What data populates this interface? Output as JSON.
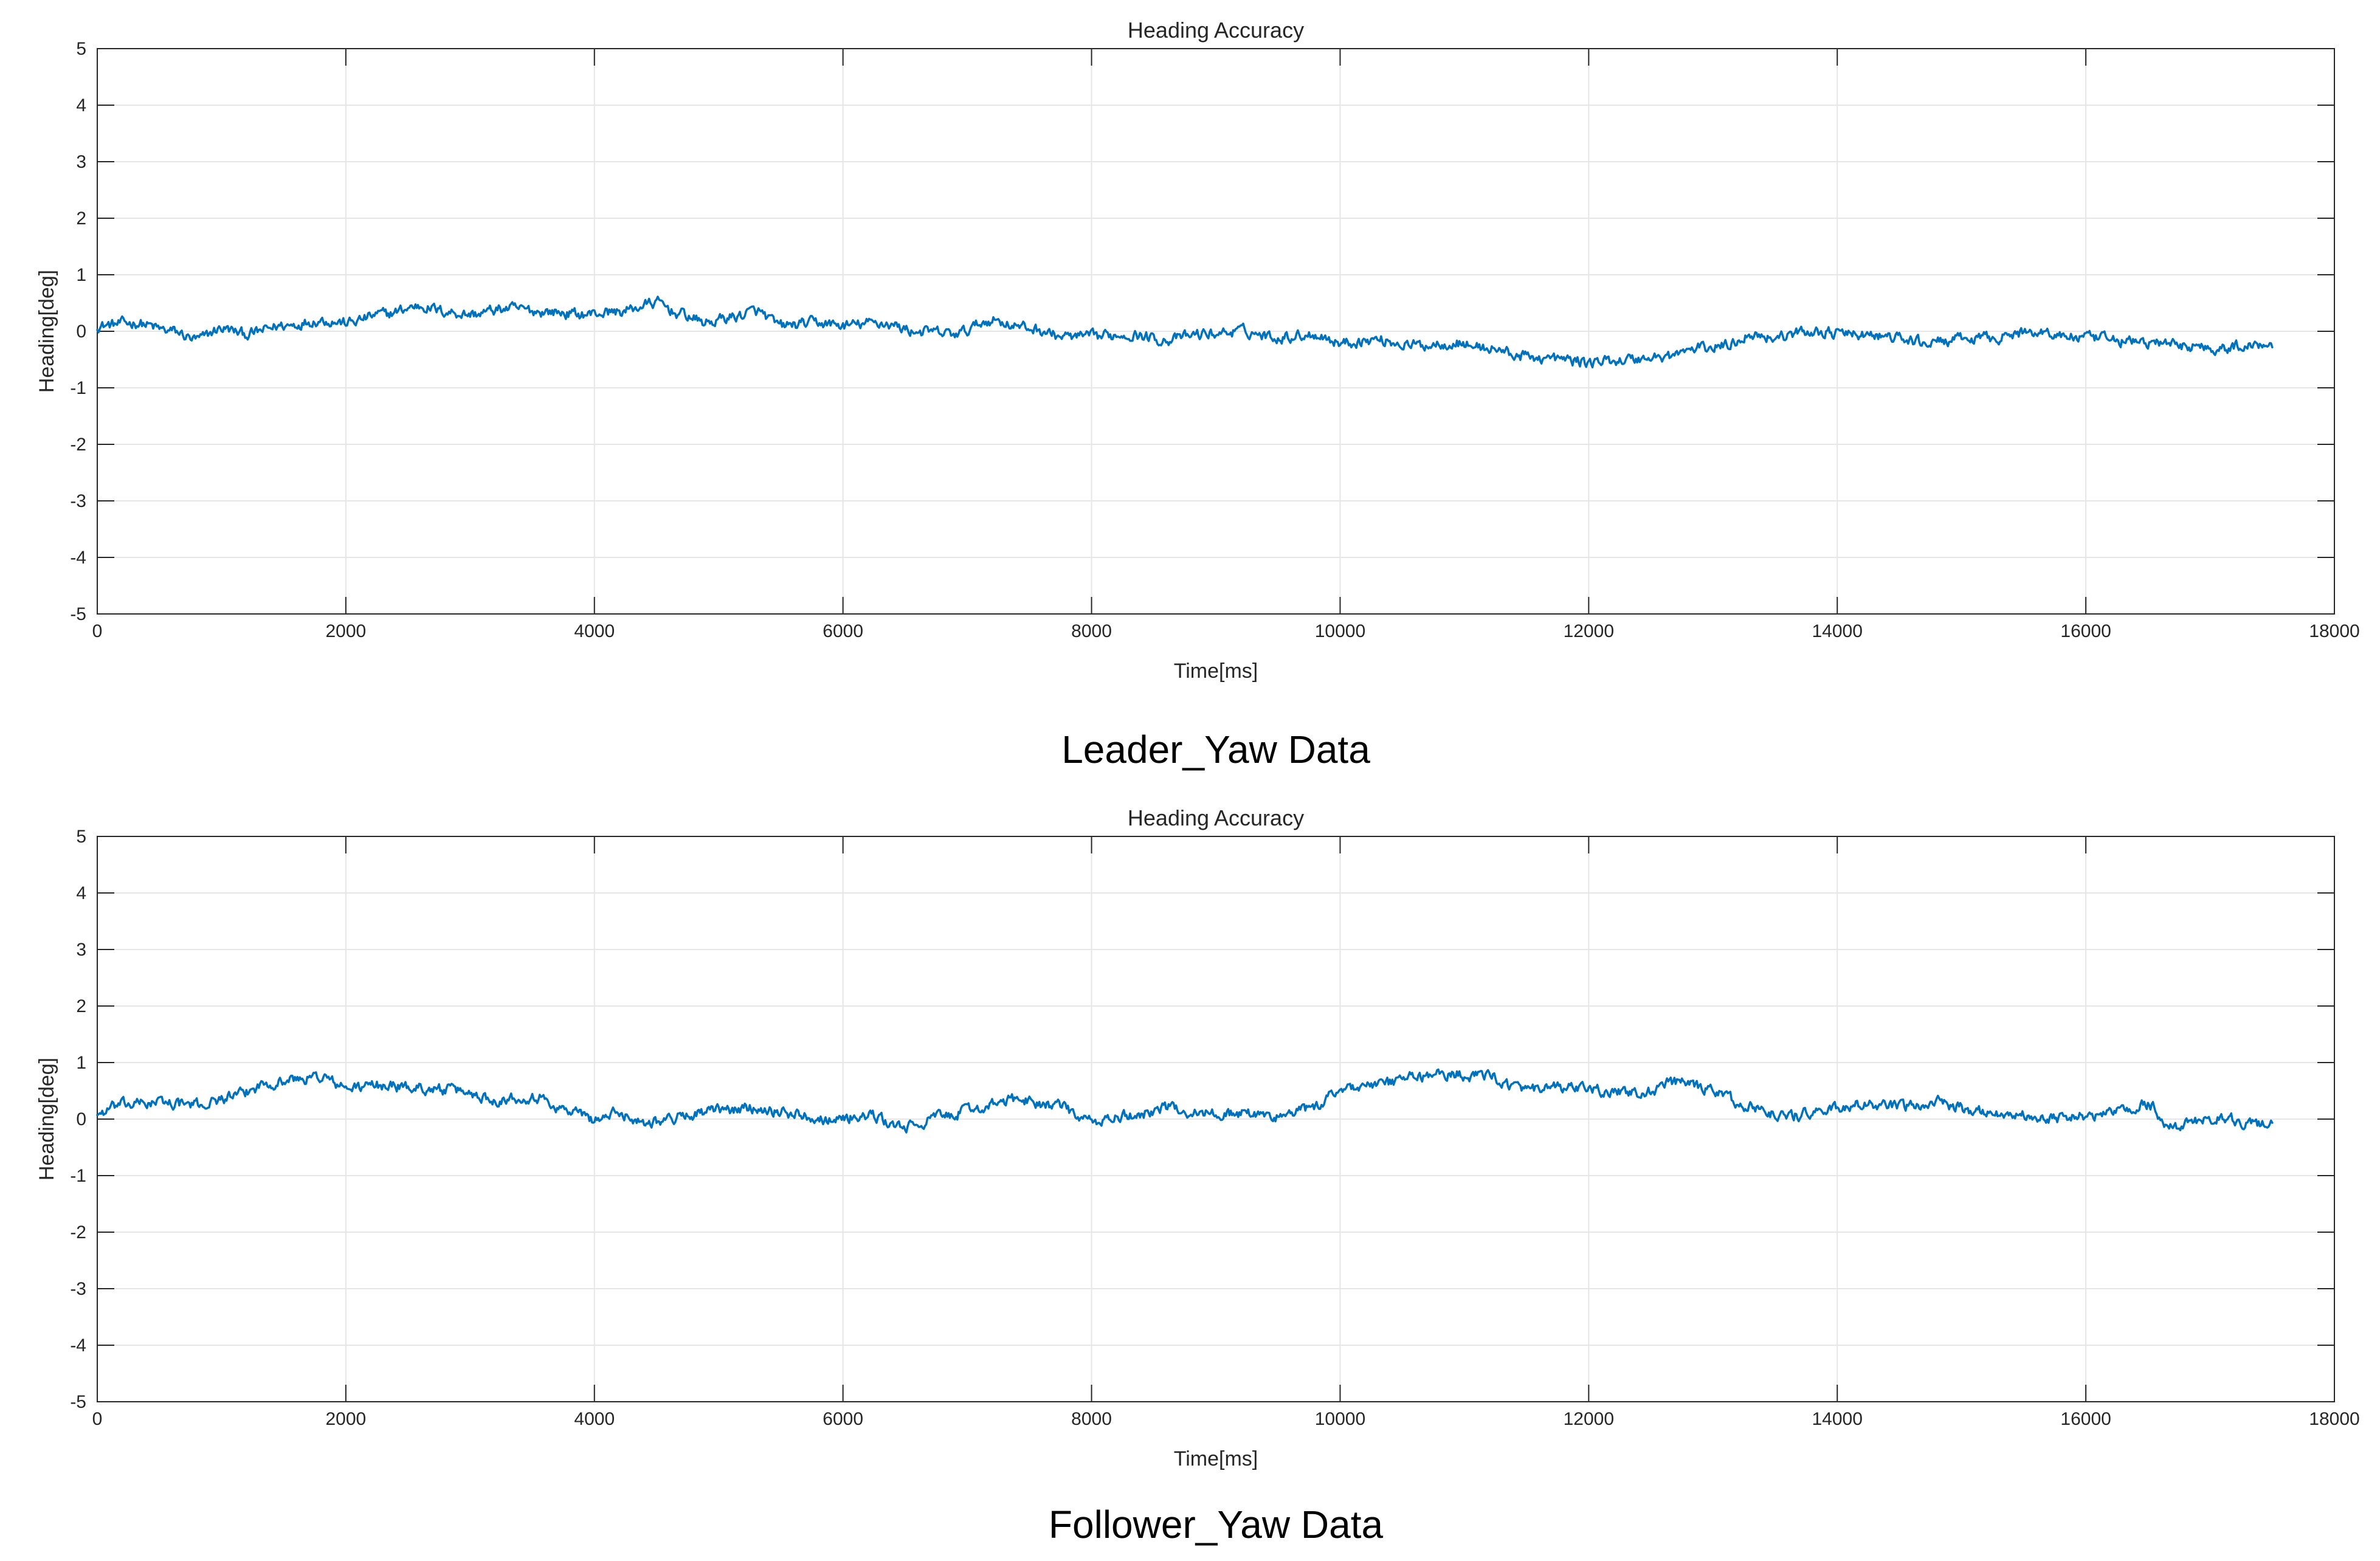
{
  "chart_data": [
    {
      "type": "line",
      "title": "Heading Accuracy",
      "xlabel": "Time[ms]",
      "ylabel": "Heading[deg]",
      "caption": "Leader_Yaw Data",
      "xlim": [
        0,
        18000
      ],
      "ylim": [
        -5,
        5
      ],
      "grid": true,
      "xticks": [
        0,
        2000,
        4000,
        6000,
        8000,
        10000,
        12000,
        14000,
        16000,
        18000
      ],
      "xtick_labels": [
        "0",
        "2000",
        "4000",
        "6000",
        "8000",
        "10000",
        "12000",
        "14000",
        "16000",
        "18000"
      ],
      "yticks": [
        -5,
        -4,
        -3,
        -2,
        -1,
        0,
        1,
        2,
        3,
        4,
        5
      ],
      "ytick_labels": [
        "-5",
        "-4",
        "-3",
        "-2",
        "-1",
        "0",
        "1",
        "2",
        "3",
        "4",
        "5"
      ],
      "series": [
        {
          "name": "Leader yaw",
          "color": "#0072BD",
          "x": [
            0,
            300,
            600,
            800,
            1000,
            1200,
            1500,
            1800,
            2000,
            2300,
            2600,
            2800,
            3000,
            3300,
            3600,
            3900,
            4200,
            4500,
            4700,
            4900,
            5100,
            5300,
            5500,
            5800,
            6000,
            6300,
            6600,
            6900,
            7200,
            7500,
            7800,
            8000,
            8300,
            8600,
            8900,
            9200,
            9500,
            9800,
            10000,
            10300,
            10600,
            10900,
            11200,
            11500,
            11800,
            12000,
            12300,
            12600,
            12900,
            13100,
            13300,
            13500,
            13800,
            14100,
            14400,
            14700,
            15000,
            15300,
            15600,
            15900,
            16200,
            16500,
            16800,
            17100,
            17300,
            17500
          ],
          "values": [
            0.1,
            0.15,
            0.0,
            -0.15,
            0.05,
            -0.05,
            0.1,
            0.2,
            0.15,
            0.3,
            0.45,
            0.35,
            0.3,
            0.4,
            0.35,
            0.3,
            0.35,
            0.5,
            0.3,
            0.15,
            0.25,
            0.35,
            0.1,
            0.15,
            0.1,
            0.15,
            0.0,
            -0.05,
            0.2,
            0.05,
            -0.1,
            -0.1,
            -0.05,
            -0.15,
            -0.05,
            0.0,
            -0.1,
            -0.05,
            -0.2,
            -0.15,
            -0.25,
            -0.2,
            -0.3,
            -0.45,
            -0.5,
            -0.55,
            -0.5,
            -0.45,
            -0.3,
            -0.25,
            -0.05,
            -0.1,
            0.0,
            -0.05,
            -0.1,
            -0.2,
            -0.15,
            -0.1,
            0.0,
            -0.1,
            -0.15,
            -0.2,
            -0.25,
            -0.3,
            -0.25,
            -0.2
          ]
        }
      ]
    },
    {
      "type": "line",
      "title": "Heading Accuracy",
      "xlabel": "Time[ms]",
      "ylabel": "Heading[deg]",
      "caption": "Follower_Yaw Data",
      "xlim": [
        0,
        18000
      ],
      "ylim": [
        -5,
        5
      ],
      "grid": true,
      "xticks": [
        0,
        2000,
        4000,
        6000,
        8000,
        10000,
        12000,
        14000,
        16000,
        18000
      ],
      "xtick_labels": [
        "0",
        "2000",
        "4000",
        "6000",
        "8000",
        "10000",
        "12000",
        "14000",
        "16000",
        "18000"
      ],
      "yticks": [
        -5,
        -4,
        -3,
        -2,
        -1,
        0,
        1,
        2,
        3,
        4,
        5
      ],
      "ytick_labels": [
        "-5",
        "-4",
        "-3",
        "-2",
        "-1",
        "0",
        "1",
        "2",
        "3",
        "4",
        "5"
      ],
      "series": [
        {
          "name": "Follower yaw",
          "color": "#0072BD",
          "x": [
            0,
            200,
            500,
            800,
            1100,
            1400,
            1600,
            1800,
            2000,
            2300,
            2600,
            2900,
            3200,
            3500,
            3800,
            4000,
            4200,
            4400,
            4600,
            4800,
            5000,
            5300,
            5600,
            5900,
            6200,
            6500,
            6800,
            7100,
            7400,
            7700,
            8000,
            8300,
            8600,
            8900,
            9200,
            9500,
            9800,
            10000,
            10300,
            10600,
            10900,
            11200,
            11500,
            11800,
            12100,
            12400,
            12700,
            13000,
            13300,
            13600,
            13900,
            14200,
            14500,
            14800,
            15100,
            15400,
            15700,
            16000,
            16300,
            16500,
            16700,
            16900,
            17100,
            17300,
            17500
          ],
          "values": [
            0.1,
            0.25,
            0.3,
            0.25,
            0.4,
            0.65,
            0.7,
            0.75,
            0.55,
            0.6,
            0.55,
            0.5,
            0.35,
            0.4,
            0.15,
            0.0,
            0.1,
            -0.05,
            0.0,
            0.1,
            0.15,
            0.2,
            0.1,
            0.0,
            0.05,
            -0.15,
            0.05,
            0.2,
            0.35,
            0.25,
            -0.05,
            0.05,
            0.2,
            0.1,
            0.1,
            0.05,
            0.2,
            0.55,
            0.6,
            0.75,
            0.8,
            0.75,
            0.5,
            0.55,
            0.5,
            0.45,
            0.65,
            0.5,
            0.2,
            0.05,
            0.15,
            0.25,
            0.2,
            0.3,
            0.15,
            0.1,
            0.0,
            0.05,
            0.15,
            0.25,
            -0.15,
            -0.05,
            0.05,
            -0.1,
            -0.05
          ]
        }
      ]
    }
  ]
}
